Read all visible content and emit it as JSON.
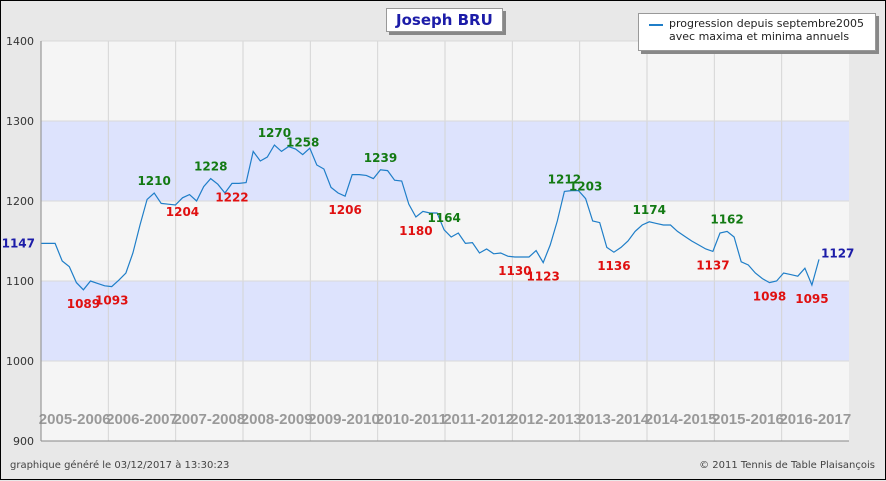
{
  "title": "Joseph BRU",
  "legend": {
    "line1": "progression depuis septembre2005",
    "line2": "avec maxima et minima annuels"
  },
  "footer": {
    "generated": "graphique généré le 03/12/2017 à 13:30:23",
    "copyright": "© 2011 Tennis de Table Plaisançois"
  },
  "colors": {
    "line": "#1f7ec8",
    "max_label": "#137a13",
    "min_label": "#e01010",
    "endpoint_label": "#1c1ca8",
    "band": "#dde3fd",
    "plot_bg": "#f5f5f5",
    "season_label": "#999999"
  },
  "chart_data": {
    "type": "line",
    "ylim": [
      900,
      1400
    ],
    "yticks": [
      900,
      1000,
      1100,
      1200,
      1300,
      1400
    ],
    "bands": [
      [
        1000,
        1100
      ],
      [
        1200,
        1300
      ]
    ],
    "seasons": [
      "2005-2006",
      "2006-2007",
      "2007-2008",
      "2008-2009",
      "2009-2010",
      "2010-2011",
      "2011-2012",
      "2012-2013",
      "2013-2014",
      "2014-2015",
      "2015-2016",
      "2016-2017"
    ],
    "series": [
      {
        "name": "progression depuis septembre2005",
        "values": [
          1147,
          1147,
          1147,
          1125,
          1118,
          1098,
          1089,
          1100,
          1097,
          1094,
          1093,
          1101,
          1110,
          1135,
          1170,
          1202,
          1210,
          1197,
          1196,
          1195,
          1204,
          1208,
          1200,
          1218,
          1228,
          1221,
          1210,
          1222,
          1222,
          1223,
          1262,
          1250,
          1255,
          1270,
          1262,
          1268,
          1265,
          1258,
          1266,
          1245,
          1240,
          1217,
          1210,
          1206,
          1233,
          1233,
          1232,
          1228,
          1239,
          1238,
          1226,
          1225,
          1196,
          1180,
          1187,
          1185,
          1185,
          1164,
          1155,
          1160,
          1147,
          1148,
          1135,
          1140,
          1134,
          1135,
          1131,
          1130,
          1130,
          1130,
          1138,
          1123,
          1145,
          1175,
          1212,
          1213,
          1213,
          1203,
          1175,
          1173,
          1142,
          1136,
          1142,
          1150,
          1162,
          1170,
          1174,
          1172,
          1170,
          1170,
          1162,
          1156,
          1150,
          1145,
          1140,
          1137,
          1160,
          1162,
          1155,
          1124,
          1120,
          1110,
          1103,
          1098,
          1100,
          1110,
          1108,
          1106,
          1116,
          1095,
          1127
        ]
      }
    ],
    "annotations": [
      {
        "label": "1147",
        "index": 0,
        "type": "endpoint"
      },
      {
        "label": "1089",
        "index": 6,
        "type": "min"
      },
      {
        "label": "1093",
        "index": 10,
        "type": "min"
      },
      {
        "label": "1210",
        "index": 16,
        "type": "max"
      },
      {
        "label": "1204",
        "index": 20,
        "type": "min"
      },
      {
        "label": "1228",
        "index": 24,
        "type": "max"
      },
      {
        "label": "1222",
        "index": 27,
        "type": "min"
      },
      {
        "label": "1270",
        "index": 33,
        "type": "max"
      },
      {
        "label": "1258",
        "index": 37,
        "type": "max"
      },
      {
        "label": "1206",
        "index": 43,
        "type": "min"
      },
      {
        "label": "1239",
        "index": 48,
        "type": "max"
      },
      {
        "label": "1180",
        "index": 53,
        "type": "min"
      },
      {
        "label": "1164",
        "index": 57,
        "type": "max"
      },
      {
        "label": "1130",
        "index": 67,
        "type": "min"
      },
      {
        "label": "1123",
        "index": 71,
        "type": "min"
      },
      {
        "label": "1212",
        "index": 74,
        "type": "max"
      },
      {
        "label": "1203",
        "index": 77,
        "type": "max"
      },
      {
        "label": "1136",
        "index": 81,
        "type": "min"
      },
      {
        "label": "1174",
        "index": 86,
        "type": "max"
      },
      {
        "label": "1137",
        "index": 95,
        "type": "min"
      },
      {
        "label": "1162",
        "index": 97,
        "type": "max"
      },
      {
        "label": "1098",
        "index": 103,
        "type": "min"
      },
      {
        "label": "1095",
        "index": 109,
        "type": "min"
      },
      {
        "label": "1127",
        "index": 110,
        "type": "endpoint"
      }
    ]
  }
}
